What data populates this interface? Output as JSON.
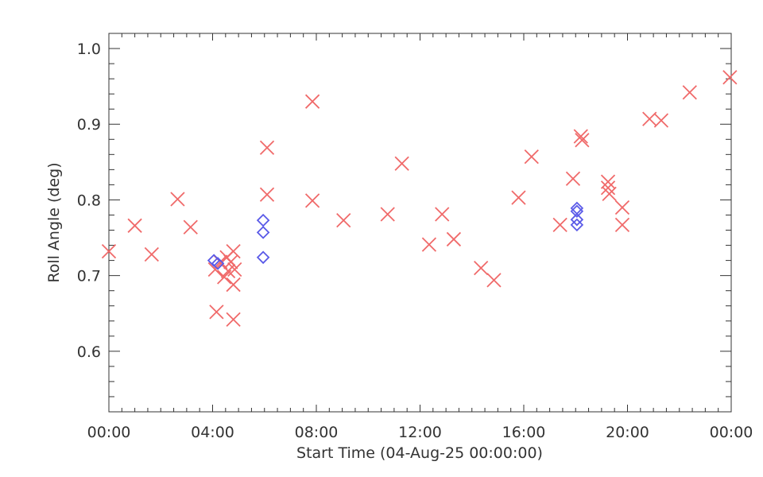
{
  "chart_data": {
    "type": "scatter",
    "title": "",
    "xlabel": "Start Time (04-Aug-25 00:00:00)",
    "ylabel": "Roll Angle (deg)",
    "x_unit": "hours",
    "xlim": [
      0,
      24
    ],
    "ylim": [
      0.52,
      1.02
    ],
    "x_ticks": [
      0,
      4,
      8,
      12,
      16,
      20,
      24
    ],
    "x_tick_labels": [
      "00:00",
      "04:00",
      "08:00",
      "12:00",
      "16:00",
      "20:00",
      "00:00"
    ],
    "y_ticks": [
      0.6,
      0.7,
      0.8,
      0.9,
      1.0
    ],
    "y_tick_labels": [
      "0.6",
      "0.7",
      "0.8",
      "0.9",
      "1.0"
    ],
    "grid": false,
    "series": [
      {
        "marker": "x",
        "color": "#f06a6a",
        "points": [
          [
            0.0,
            0.732
          ],
          [
            1.0,
            0.766
          ],
          [
            1.65,
            0.728
          ],
          [
            2.65,
            0.801
          ],
          [
            3.15,
            0.764
          ],
          [
            4.1,
            0.708
          ],
          [
            4.15,
            0.652
          ],
          [
            4.3,
            0.718
          ],
          [
            4.45,
            0.698
          ],
          [
            4.55,
            0.724
          ],
          [
            4.6,
            0.706
          ],
          [
            4.7,
            0.718
          ],
          [
            4.8,
            0.732
          ],
          [
            4.8,
            0.688
          ],
          [
            4.8,
            0.642
          ],
          [
            4.85,
            0.708
          ],
          [
            6.1,
            0.869
          ],
          [
            6.1,
            0.807
          ],
          [
            7.85,
            0.93
          ],
          [
            7.85,
            0.799
          ],
          [
            9.05,
            0.773
          ],
          [
            10.75,
            0.781
          ],
          [
            11.3,
            0.848
          ],
          [
            12.35,
            0.741
          ],
          [
            12.85,
            0.781
          ],
          [
            13.3,
            0.748
          ],
          [
            14.35,
            0.71
          ],
          [
            14.85,
            0.694
          ],
          [
            15.8,
            0.803
          ],
          [
            16.3,
            0.857
          ],
          [
            17.4,
            0.767
          ],
          [
            17.9,
            0.828
          ],
          [
            18.2,
            0.884
          ],
          [
            18.25,
            0.879
          ],
          [
            19.25,
            0.824
          ],
          [
            19.25,
            0.816
          ],
          [
            19.3,
            0.808
          ],
          [
            19.8,
            0.79
          ],
          [
            19.8,
            0.767
          ],
          [
            20.85,
            0.907
          ],
          [
            21.3,
            0.905
          ],
          [
            22.4,
            0.942
          ],
          [
            23.95,
            0.962
          ]
        ]
      },
      {
        "marker": "diamond",
        "color": "#5a5ae8",
        "points": [
          [
            4.05,
            0.72
          ],
          [
            4.2,
            0.716
          ],
          [
            5.95,
            0.773
          ],
          [
            5.95,
            0.757
          ],
          [
            5.95,
            0.724
          ],
          [
            18.05,
            0.789
          ],
          [
            18.05,
            0.785
          ],
          [
            18.05,
            0.774
          ],
          [
            18.05,
            0.767
          ]
        ]
      }
    ]
  }
}
